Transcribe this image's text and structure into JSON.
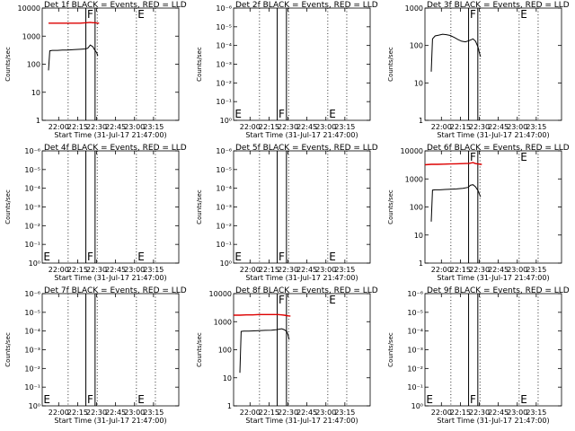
{
  "colors": {
    "events": "#000000",
    "lld": "#dd0000",
    "axis": "#000000"
  },
  "chart_data": [
    {
      "type": "line",
      "title": "Det 1f BLACK = Events, RED = LLD",
      "xlabel": "Start Time (31-Jul-17 21:47:00)",
      "ylabel": "Counts/sec",
      "xlim_min": [
        0,
        108
      ],
      "ylim": [
        1,
        10000
      ],
      "yscale": "log",
      "xticks": [
        {
          "v": 13,
          "label": "22:00"
        },
        {
          "v": 28,
          "label": "22:15"
        },
        {
          "v": 43,
          "label": "22:30"
        },
        {
          "v": 58,
          "label": "22:45"
        },
        {
          "v": 73,
          "label": "23:00"
        },
        {
          "v": 88,
          "label": "23:15"
        }
      ],
      "yticks": [
        {
          "v": 1,
          "label": "1"
        },
        {
          "v": 10,
          "label": "10"
        },
        {
          "v": 100,
          "label": "100"
        },
        {
          "v": 1000,
          "label": "1000"
        },
        {
          "v": 10000,
          "label": "10000"
        }
      ],
      "dotted_vlines": [
        20.5,
        43.5,
        74.5,
        89.5
      ],
      "solid_vlines": [
        34.5,
        41.8
      ],
      "markers": [
        {
          "label": "F",
          "x": 34.8,
          "y": 10000
        },
        {
          "label": "E",
          "x": 74.8,
          "y": 10000
        }
      ],
      "series": [
        {
          "kind": "lld",
          "x": [
            5,
            10,
            15,
            20,
            25,
            30,
            35,
            38,
            40,
            42,
            44,
            45
          ],
          "y": [
            2900,
            2900,
            2900,
            2900,
            2900,
            2900,
            3000,
            3100,
            3000,
            3000,
            2900,
            2900
          ]
        },
        {
          "kind": "events",
          "x": [
            5,
            6,
            8,
            12,
            16,
            20,
            25,
            30,
            34,
            36,
            38,
            40,
            41,
            42,
            43,
            44
          ],
          "y": [
            60,
            300,
            310,
            310,
            320,
            320,
            330,
            340,
            350,
            370,
            480,
            420,
            350,
            300,
            260,
            200
          ]
        }
      ]
    },
    {
      "type": "line",
      "title": "Det 2f BLACK = Events, RED = LLD",
      "xlabel": "Start Time (31-Jul-17 21:47:00)",
      "ylabel": "Counts/sec",
      "xlim_min": [
        0,
        108
      ],
      "ylim": [
        1,
        1e-06
      ],
      "yscale": "log",
      "xticks": [
        {
          "v": 13,
          "label": "22:00"
        },
        {
          "v": 28,
          "label": "22:15"
        },
        {
          "v": 43,
          "label": "22:30"
        },
        {
          "v": 58,
          "label": "22:45"
        },
        {
          "v": 73,
          "label": "23:00"
        },
        {
          "v": 88,
          "label": "23:15"
        }
      ],
      "yticks": [
        {
          "v": 1,
          "label": "10⁰"
        },
        {
          "v": 0.1,
          "label": "10⁻¹"
        },
        {
          "v": 0.01,
          "label": "10⁻²"
        },
        {
          "v": 0.001,
          "label": "10⁻³"
        },
        {
          "v": 0.0001,
          "label": "10⁻⁴"
        },
        {
          "v": 1e-05,
          "label": "10⁻⁵"
        },
        {
          "v": 1e-06,
          "label": "10⁻⁶"
        }
      ],
      "dotted_vlines": [
        20.5,
        43.5,
        74.5,
        89.5
      ],
      "solid_vlines": [
        34.5,
        41.8
      ],
      "markers": [
        {
          "label": "E",
          "x": 0.3,
          "y": 1
        },
        {
          "label": "F",
          "x": 34.8,
          "y": 1
        },
        {
          "label": "E",
          "x": 74.8,
          "y": 1
        }
      ],
      "series": []
    },
    {
      "type": "line",
      "title": "Det 3f BLACK = Events, RED = LLD",
      "xlabel": "Start Time (31-Jul-17 21:47:00)",
      "ylabel": "Counts/sec",
      "xlim_min": [
        0,
        108
      ],
      "ylim": [
        1,
        1000
      ],
      "yscale": "log",
      "xticks": [
        {
          "v": 13,
          "label": "22:00"
        },
        {
          "v": 28,
          "label": "22:15"
        },
        {
          "v": 43,
          "label": "22:30"
        },
        {
          "v": 58,
          "label": "22:45"
        },
        {
          "v": 73,
          "label": "23:00"
        },
        {
          "v": 88,
          "label": "23:15"
        }
      ],
      "yticks": [
        {
          "v": 1,
          "label": "1"
        },
        {
          "v": 10,
          "label": "10"
        },
        {
          "v": 100,
          "label": "100"
        },
        {
          "v": 1000,
          "label": "1000"
        }
      ],
      "dotted_vlines": [
        20.5,
        43.5,
        74.5,
        89.5
      ],
      "solid_vlines": [
        34.5,
        41.8
      ],
      "markers": [
        {
          "label": "F",
          "x": 34.8,
          "y": 1000
        },
        {
          "label": "E",
          "x": 74.8,
          "y": 1000
        }
      ],
      "series": [
        {
          "kind": "events",
          "x": [
            5,
            6,
            8,
            11,
            14,
            17,
            20,
            23,
            26,
            29,
            32,
            35,
            38,
            40,
            42,
            43,
            44
          ],
          "y": [
            20,
            150,
            180,
            190,
            200,
            195,
            185,
            165,
            145,
            130,
            125,
            135,
            150,
            130,
            90,
            65,
            50
          ]
        }
      ]
    },
    {
      "type": "line",
      "title": "Det 4f BLACK = Events, RED = LLD",
      "xlabel": "Start Time (31-Jul-17 21:47:00)",
      "ylabel": "Counts/sec",
      "xlim_min": [
        0,
        108
      ],
      "ylim": [
        1,
        1e-06
      ],
      "yscale": "log",
      "xticks": [
        {
          "v": 13,
          "label": "22:00"
        },
        {
          "v": 28,
          "label": "22:15"
        },
        {
          "v": 43,
          "label": "22:30"
        },
        {
          "v": 58,
          "label": "22:45"
        },
        {
          "v": 73,
          "label": "23:00"
        },
        {
          "v": 88,
          "label": "23:15"
        }
      ],
      "yticks": [
        {
          "v": 1,
          "label": "10⁰"
        },
        {
          "v": 0.1,
          "label": "10⁻¹"
        },
        {
          "v": 0.01,
          "label": "10⁻²"
        },
        {
          "v": 0.001,
          "label": "10⁻³"
        },
        {
          "v": 0.0001,
          "label": "10⁻⁴"
        },
        {
          "v": 1e-05,
          "label": "10⁻⁵"
        },
        {
          "v": 1e-06,
          "label": "10⁻⁶"
        }
      ],
      "dotted_vlines": [
        20.5,
        43.5,
        74.5,
        89.5
      ],
      "solid_vlines": [
        34.5,
        41.8
      ],
      "markers": [
        {
          "label": "E",
          "x": 0.3,
          "y": 1
        },
        {
          "label": "F",
          "x": 34.8,
          "y": 1
        },
        {
          "label": "E",
          "x": 74.8,
          "y": 1
        }
      ],
      "series": []
    },
    {
      "type": "line",
      "title": "Det 5f BLACK = Events, RED = LLD",
      "xlabel": "Start Time (31-Jul-17 21:47:00)",
      "ylabel": "Counts/sec",
      "xlim_min": [
        0,
        108
      ],
      "ylim": [
        1,
        1e-06
      ],
      "yscale": "log",
      "xticks": [
        {
          "v": 13,
          "label": "22:00"
        },
        {
          "v": 28,
          "label": "22:15"
        },
        {
          "v": 43,
          "label": "22:30"
        },
        {
          "v": 58,
          "label": "22:45"
        },
        {
          "v": 73,
          "label": "23:00"
        },
        {
          "v": 88,
          "label": "23:15"
        }
      ],
      "yticks": [
        {
          "v": 1,
          "label": "10⁰"
        },
        {
          "v": 0.1,
          "label": "10⁻¹"
        },
        {
          "v": 0.01,
          "label": "10⁻²"
        },
        {
          "v": 0.001,
          "label": "10⁻³"
        },
        {
          "v": 0.0001,
          "label": "10⁻⁴"
        },
        {
          "v": 1e-05,
          "label": "10⁻⁵"
        },
        {
          "v": 1e-06,
          "label": "10⁻⁶"
        }
      ],
      "dotted_vlines": [
        20.5,
        43.5,
        74.5,
        89.5
      ],
      "solid_vlines": [
        34.5,
        41.8
      ],
      "markers": [
        {
          "label": "E",
          "x": 0.3,
          "y": 1
        },
        {
          "label": "F",
          "x": 34.8,
          "y": 1
        },
        {
          "label": "E",
          "x": 74.8,
          "y": 1
        }
      ],
      "series": []
    },
    {
      "type": "line",
      "title": "Det 6f BLACK = Events, RED = LLD",
      "xlabel": "Start Time (31-Jul-17 21:47:00)",
      "ylabel": "Counts/sec",
      "xlim_min": [
        0,
        108
      ],
      "ylim": [
        1,
        10000
      ],
      "yscale": "log",
      "xticks": [
        {
          "v": 13,
          "label": "22:00"
        },
        {
          "v": 28,
          "label": "22:15"
        },
        {
          "v": 43,
          "label": "22:30"
        },
        {
          "v": 58,
          "label": "22:45"
        },
        {
          "v": 73,
          "label": "23:00"
        },
        {
          "v": 88,
          "label": "23:15"
        }
      ],
      "yticks": [
        {
          "v": 1,
          "label": "1"
        },
        {
          "v": 10,
          "label": "10"
        },
        {
          "v": 100,
          "label": "100"
        },
        {
          "v": 1000,
          "label": "1000"
        },
        {
          "v": 10000,
          "label": "10000"
        }
      ],
      "dotted_vlines": [
        20.5,
        43.5,
        74.5,
        89.5
      ],
      "solid_vlines": [
        34.5,
        41.8
      ],
      "markers": [
        {
          "label": "F",
          "x": 34.8,
          "y": 10000
        },
        {
          "label": "E",
          "x": 74.8,
          "y": 10000
        }
      ],
      "series": [
        {
          "kind": "lld",
          "x": [
            0,
            5,
            10,
            15,
            20,
            25,
            30,
            35,
            38,
            40,
            42,
            44,
            45
          ],
          "y": [
            3200,
            3300,
            3300,
            3350,
            3400,
            3450,
            3500,
            3600,
            3800,
            3500,
            3400,
            3300,
            3300
          ]
        },
        {
          "kind": "events",
          "x": [
            5,
            6,
            8,
            12,
            16,
            20,
            25,
            30,
            34,
            36,
            38,
            40,
            42,
            44
          ],
          "y": [
            30,
            400,
            410,
            410,
            420,
            430,
            440,
            460,
            500,
            600,
            620,
            520,
            380,
            230
          ]
        }
      ]
    },
    {
      "type": "line",
      "title": "Det 7f BLACK = Events, RED = LLD",
      "xlabel": "Start Time (31-Jul-17 21:47:00)",
      "ylabel": "Counts/sec",
      "xlim_min": [
        0,
        108
      ],
      "ylim": [
        1,
        1e-06
      ],
      "yscale": "log",
      "xticks": [
        {
          "v": 13,
          "label": "22:00"
        },
        {
          "v": 28,
          "label": "22:15"
        },
        {
          "v": 43,
          "label": "22:30"
        },
        {
          "v": 58,
          "label": "22:45"
        },
        {
          "v": 73,
          "label": "23:00"
        },
        {
          "v": 88,
          "label": "23:15"
        }
      ],
      "yticks": [
        {
          "v": 1,
          "label": "10⁰"
        },
        {
          "v": 0.1,
          "label": "10⁻¹"
        },
        {
          "v": 0.01,
          "label": "10⁻²"
        },
        {
          "v": 0.001,
          "label": "10⁻³"
        },
        {
          "v": 0.0001,
          "label": "10⁻⁴"
        },
        {
          "v": 1e-05,
          "label": "10⁻⁵"
        },
        {
          "v": 1e-06,
          "label": "10⁻⁶"
        }
      ],
      "dotted_vlines": [
        20.5,
        43.5,
        74.5,
        89.5
      ],
      "solid_vlines": [
        34.5,
        41.8
      ],
      "markers": [
        {
          "label": "E",
          "x": 0.3,
          "y": 1
        },
        {
          "label": "F",
          "x": 34.8,
          "y": 1
        },
        {
          "label": "E",
          "x": 74.8,
          "y": 1
        }
      ],
      "series": []
    },
    {
      "type": "line",
      "title": "Det 8f BLACK = Events, RED = LLD",
      "xlabel": "Start Time (31-Jul-17 21:47:00)",
      "ylabel": "Counts/sec",
      "xlim_min": [
        0,
        108
      ],
      "ylim": [
        1,
        10000
      ],
      "yscale": "log",
      "xticks": [
        {
          "v": 13,
          "label": "22:00"
        },
        {
          "v": 28,
          "label": "22:15"
        },
        {
          "v": 43,
          "label": "22:30"
        },
        {
          "v": 58,
          "label": "22:45"
        },
        {
          "v": 73,
          "label": "23:00"
        },
        {
          "v": 88,
          "label": "23:15"
        }
      ],
      "yticks": [
        {
          "v": 1,
          "label": "1"
        },
        {
          "v": 10,
          "label": "10"
        },
        {
          "v": 100,
          "label": "100"
        },
        {
          "v": 1000,
          "label": "1000"
        },
        {
          "v": 10000,
          "label": "10000"
        }
      ],
      "dotted_vlines": [
        20.5,
        43.5,
        74.5,
        89.5
      ],
      "solid_vlines": [
        34.5,
        41.8
      ],
      "markers": [
        {
          "label": "F",
          "x": 34.8,
          "y": 10000
        },
        {
          "label": "E",
          "x": 74.8,
          "y": 10000
        }
      ],
      "series": [
        {
          "kind": "lld",
          "x": [
            0,
            5,
            10,
            15,
            20,
            25,
            30,
            35,
            38,
            40,
            42,
            44,
            45
          ],
          "y": [
            1700,
            1700,
            1750,
            1750,
            1800,
            1800,
            1800,
            1800,
            1750,
            1700,
            1650,
            1600,
            1600
          ]
        },
        {
          "kind": "events",
          "x": [
            5,
            6,
            8,
            12,
            16,
            20,
            25,
            30,
            34,
            36,
            38,
            40,
            42,
            43,
            44
          ],
          "y": [
            15,
            450,
            460,
            460,
            470,
            480,
            490,
            500,
            520,
            540,
            560,
            520,
            450,
            350,
            230
          ]
        }
      ]
    },
    {
      "type": "line",
      "title": "Det 9f BLACK = Events, RED = LLD",
      "xlabel": "Start Time (31-Jul-17 21:47:00)",
      "ylabel": "Counts/sec",
      "xlim_min": [
        0,
        108
      ],
      "ylim": [
        1,
        1e-06
      ],
      "yscale": "log",
      "xticks": [
        {
          "v": 13,
          "label": "22:00"
        },
        {
          "v": 28,
          "label": "22:15"
        },
        {
          "v": 43,
          "label": "22:30"
        },
        {
          "v": 58,
          "label": "22:45"
        },
        {
          "v": 73,
          "label": "23:00"
        },
        {
          "v": 88,
          "label": "23:15"
        }
      ],
      "yticks": [
        {
          "v": 1,
          "label": "10⁰"
        },
        {
          "v": 0.1,
          "label": "10⁻¹"
        },
        {
          "v": 0.01,
          "label": "10⁻²"
        },
        {
          "v": 0.001,
          "label": "10⁻³"
        },
        {
          "v": 0.0001,
          "label": "10⁻⁴"
        },
        {
          "v": 1e-05,
          "label": "10⁻⁵"
        },
        {
          "v": 1e-06,
          "label": "10⁻⁶"
        }
      ],
      "dotted_vlines": [
        20.5,
        43.5,
        74.5,
        89.5
      ],
      "solid_vlines": [
        34.5,
        41.8
      ],
      "markers": [
        {
          "label": "E",
          "x": 0.3,
          "y": 1
        },
        {
          "label": "F",
          "x": 34.8,
          "y": 1
        },
        {
          "label": "E",
          "x": 74.8,
          "y": 1
        }
      ],
      "series": []
    }
  ]
}
